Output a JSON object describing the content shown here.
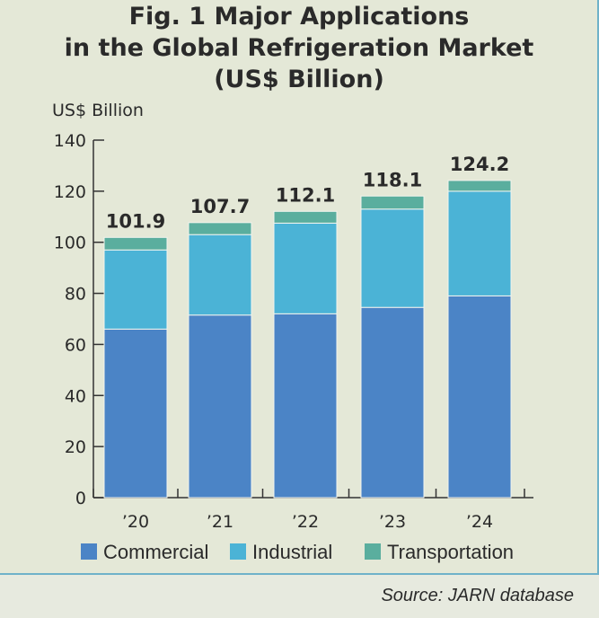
{
  "chart_data": {
    "type": "bar",
    "stacked": true,
    "title": [
      "Fig. 1  Major Applications",
      "in the Global Refrigeration Market",
      "(US$ Billion)"
    ],
    "ylabel": "US$ Billion",
    "xlabel": "",
    "ylim": [
      0,
      140
    ],
    "yticks": [
      0,
      20,
      40,
      60,
      80,
      100,
      120,
      140
    ],
    "categories": [
      "’20",
      "’21",
      "’22",
      "’23",
      "’24"
    ],
    "series": [
      {
        "name": "Commercial",
        "color": "#4b84c6",
        "values": [
          66,
          71.5,
          72,
          74.5,
          79
        ]
      },
      {
        "name": "Industrial",
        "color": "#4bb3d6",
        "values": [
          31,
          31.5,
          35.5,
          38.5,
          41
        ]
      },
      {
        "name": "Transportation",
        "color": "#5aae9e",
        "values": [
          4.9,
          4.7,
          4.6,
          5.1,
          4.2
        ]
      }
    ],
    "totals": [
      "101.9",
      "107.7",
      "112.1",
      "118.1",
      "124.2"
    ],
    "legend_position": "bottom",
    "grid": false
  },
  "source": "Source: JARN database"
}
